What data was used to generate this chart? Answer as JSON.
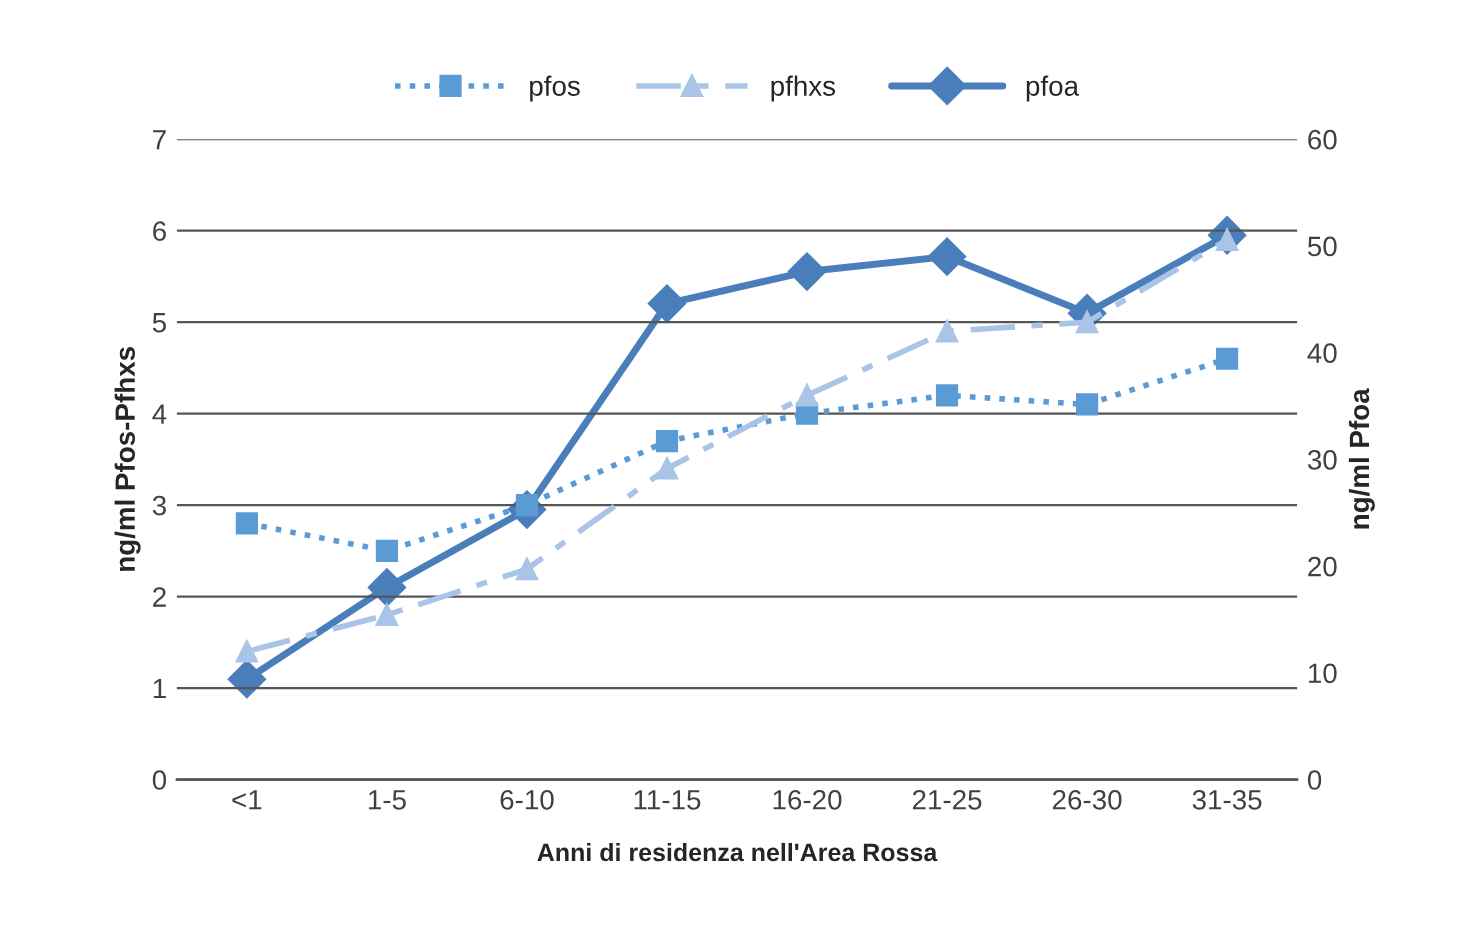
{
  "chart_data": {
    "type": "line",
    "xlabel": "Anni di residenza nell'Area Rossa",
    "ylabel": "ng/ml Pfos-Pfhxs",
    "y2label": "ng/ml Pfoa",
    "categories": [
      "<1",
      "1-5",
      "6-10",
      "11-15",
      "16-20",
      "21-25",
      "26-30",
      "31-35"
    ],
    "ylim": [
      0,
      7
    ],
    "yticks": [
      0,
      1,
      2,
      3,
      4,
      5,
      6,
      7
    ],
    "y2lim": [
      0,
      60
    ],
    "y2ticks": [
      0,
      10,
      20,
      30,
      40,
      50,
      60
    ],
    "grid": "y",
    "legend": "top",
    "series": [
      {
        "name": "pfos",
        "color": "#5b9bd5",
        "marker": "square",
        "line_style": "dotted",
        "values": [
          2.8,
          2.5,
          3.0,
          3.7,
          4.0,
          4.2,
          4.1,
          4.6
        ]
      },
      {
        "name": "pfhxs",
        "color": "#a9c4e6",
        "marker": "triangle",
        "line_style": "dashed",
        "values": [
          1.4,
          1.8,
          2.3,
          3.4,
          4.2,
          4.9,
          5.0,
          5.9
        ]
      },
      {
        "name": "pfoa",
        "color": "#4a7ebb",
        "marker": "diamond",
        "line_style": "solid",
        "axis": "y2",
        "values": [
          9.4,
          18,
          25.3,
          44.6,
          47.6,
          49,
          43.7,
          51
        ]
      }
    ]
  }
}
